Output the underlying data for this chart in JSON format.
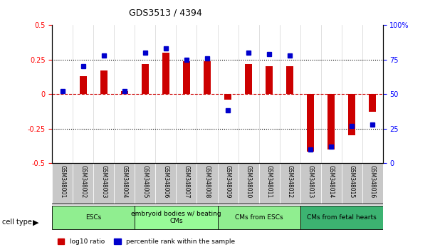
{
  "title": "GDS3513 / 4394",
  "samples": [
    "GSM348001",
    "GSM348002",
    "GSM348003",
    "GSM348004",
    "GSM348005",
    "GSM348006",
    "GSM348007",
    "GSM348008",
    "GSM348009",
    "GSM348010",
    "GSM348011",
    "GSM348012",
    "GSM348013",
    "GSM348014",
    "GSM348015",
    "GSM348016"
  ],
  "log10_ratio": [
    0.0,
    0.13,
    0.17,
    0.02,
    0.22,
    0.3,
    0.24,
    0.24,
    -0.04,
    0.22,
    0.2,
    0.2,
    -0.42,
    -0.4,
    -0.3,
    -0.13
  ],
  "percentile_rank": [
    52,
    70,
    78,
    52,
    80,
    83,
    75,
    76,
    38,
    80,
    79,
    78,
    10,
    12,
    27,
    28
  ],
  "cell_types": [
    {
      "label": "ESCs",
      "start": 0,
      "end": 4,
      "color": "#90EE90"
    },
    {
      "label": "embryoid bodies w/ beating\nCMs",
      "start": 4,
      "end": 8,
      "color": "#98FB98"
    },
    {
      "label": "CMs from ESCs",
      "start": 8,
      "end": 12,
      "color": "#90EE90"
    },
    {
      "label": "CMs from fetal hearts",
      "start": 12,
      "end": 16,
      "color": "#3CB371"
    }
  ],
  "ylim_left": [
    -0.5,
    0.5
  ],
  "ylim_right": [
    0,
    100
  ],
  "yticks_left": [
    -0.5,
    -0.25,
    0,
    0.25,
    0.5
  ],
  "yticks_right": [
    0,
    25,
    50,
    75,
    100
  ],
  "bar_color": "#CC0000",
  "dot_color": "#0000CC",
  "zero_line_color": "#CC0000",
  "dotted_line_color": "#000000",
  "background_color": "#ffffff",
  "plot_bg_color": "#ffffff"
}
